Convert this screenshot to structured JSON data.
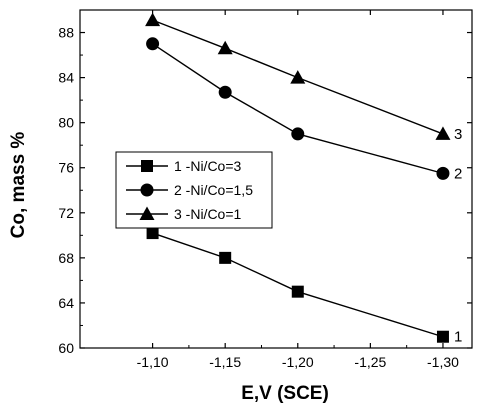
{
  "chart_data": {
    "type": "line",
    "xlabel": "E,V (SCE)",
    "ylabel": "Co, mass %",
    "xlim": [
      -1.05,
      -1.32
    ],
    "ylim": [
      60,
      90
    ],
    "x_ticks": [
      -1.1,
      -1.15,
      -1.2,
      -1.25,
      -1.3
    ],
    "x_tick_labels": [
      "-1,10",
      "-1,15",
      "-1,20",
      "-1,25",
      "-1,30"
    ],
    "y_ticks": [
      60,
      64,
      68,
      72,
      76,
      80,
      84,
      88
    ],
    "y_tick_labels": [
      "60",
      "64",
      "68",
      "72",
      "76",
      "80",
      "84",
      "88"
    ],
    "legend_position": "center-left",
    "grid": false,
    "series": [
      {
        "name": "1 -Ni/Co=3",
        "end_label": "1",
        "marker": "square",
        "x": [
          -1.1,
          -1.15,
          -1.2,
          -1.3
        ],
        "y": [
          70.2,
          68.0,
          65.0,
          61.0
        ]
      },
      {
        "name": "2 -Ni/Co=1,5",
        "end_label": "2",
        "marker": "circle",
        "x": [
          -1.1,
          -1.15,
          -1.2,
          -1.3
        ],
        "y": [
          87.0,
          82.7,
          79.0,
          75.5
        ]
      },
      {
        "name": "3 -Ni/Co=1",
        "end_label": "3",
        "marker": "triangle",
        "x": [
          -1.1,
          -1.15,
          -1.2,
          -1.3
        ],
        "y": [
          89.1,
          86.6,
          84.0,
          79.0
        ]
      }
    ]
  }
}
